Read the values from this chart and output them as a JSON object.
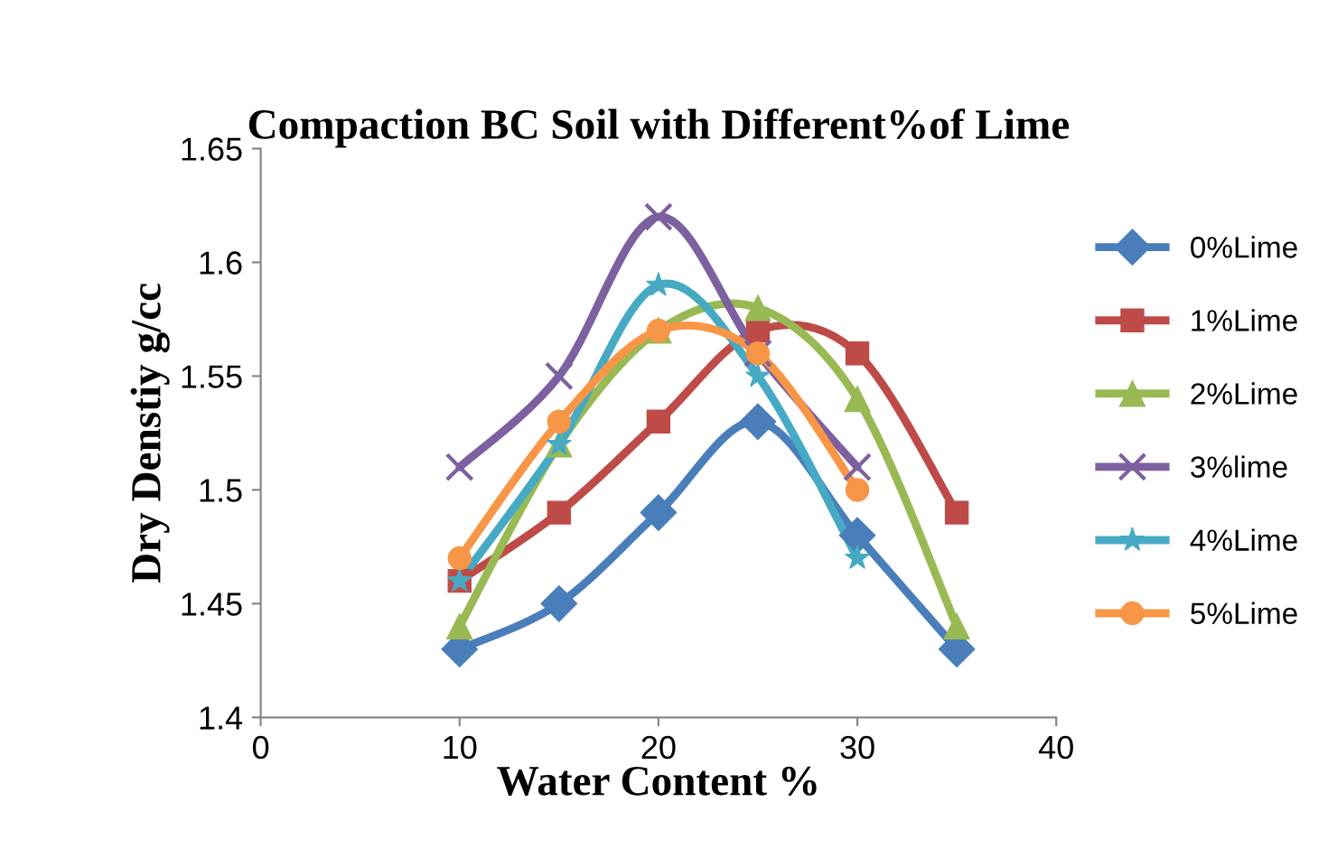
{
  "chart_data": {
    "type": "line",
    "title": "Compaction BC Soil with Different%of Lime",
    "xlabel": "Water Content %",
    "ylabel": "Dry Denstiy g/cc",
    "xlim": [
      0,
      40
    ],
    "xticks": [
      0,
      10,
      20,
      30,
      40
    ],
    "ylim": [
      1.4,
      1.65
    ],
    "yticks": [
      1.4,
      1.45,
      1.5,
      1.55,
      1.6,
      1.65
    ],
    "grid": false,
    "legend": "right",
    "line_style": "solid",
    "series": [
      {
        "name": "0%Lime",
        "color": "#4a7ebb",
        "marker": "diamond",
        "x": [
          10,
          15,
          20,
          25,
          30,
          35
        ],
        "values": [
          1.43,
          1.45,
          1.49,
          1.53,
          1.48,
          1.43
        ]
      },
      {
        "name": "1%Lime",
        "color": "#be4b48",
        "marker": "square",
        "x": [
          10,
          15,
          20,
          25,
          30,
          35
        ],
        "values": [
          1.46,
          1.49,
          1.53,
          1.57,
          1.56,
          1.49
        ]
      },
      {
        "name": "2%Lime",
        "color": "#98b954",
        "marker": "triangle",
        "x": [
          10,
          15,
          20,
          25,
          30,
          35
        ],
        "values": [
          1.44,
          1.52,
          1.57,
          1.58,
          1.54,
          1.44
        ]
      },
      {
        "name": "3%lime",
        "color": "#7d60a0",
        "marker": "cross",
        "x": [
          10,
          15,
          20,
          25,
          30
        ],
        "values": [
          1.51,
          1.55,
          1.62,
          1.56,
          1.51
        ]
      },
      {
        "name": "4%Lime",
        "color": "#46aac5",
        "marker": "star",
        "x": [
          10,
          15,
          20,
          25,
          30
        ],
        "values": [
          1.46,
          1.52,
          1.59,
          1.55,
          1.47
        ]
      },
      {
        "name": "5%Lime",
        "color": "#f79646",
        "marker": "circle",
        "x": [
          10,
          15,
          20,
          25,
          30
        ],
        "values": [
          1.47,
          1.53,
          1.57,
          1.56,
          1.5
        ]
      }
    ]
  }
}
